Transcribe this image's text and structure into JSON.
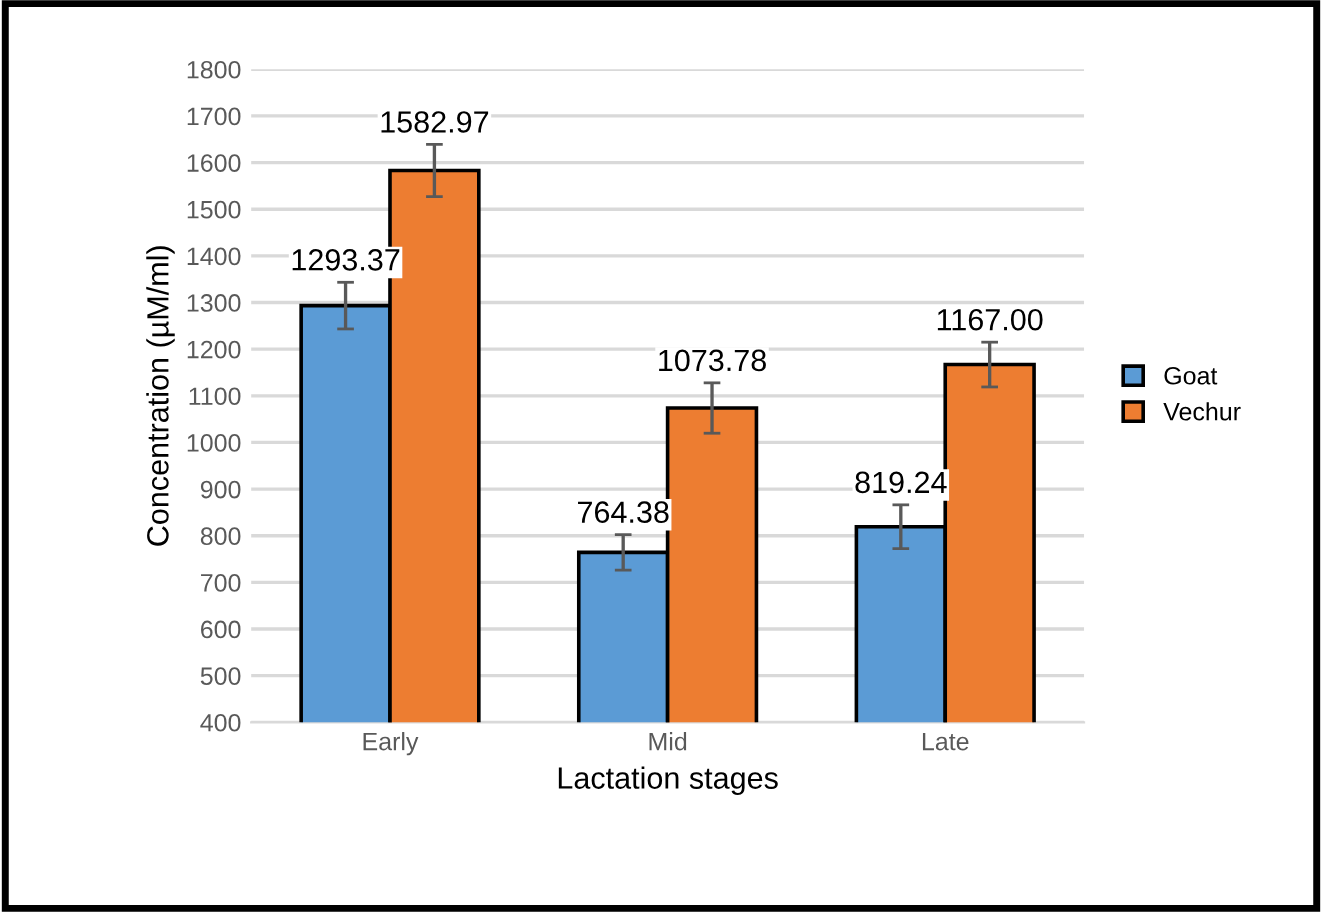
{
  "chart_data": {
    "type": "bar",
    "categories": [
      "Early",
      "Mid",
      "Late"
    ],
    "series": [
      {
        "name": "Goat",
        "color": "#5b9bd5",
        "values": [
          1293.37,
          764.38,
          819.24
        ],
        "errors": [
          50,
          38,
          47
        ],
        "value_labels": [
          "1293.37",
          "764.38",
          "819.24"
        ]
      },
      {
        "name": "Vechur",
        "color": "#ed7d31",
        "values": [
          1582.97,
          1073.78,
          1167.0
        ],
        "errors": [
          56,
          54,
          48
        ],
        "value_labels": [
          "1582.97",
          "1073.78",
          "1167.00"
        ]
      }
    ],
    "xlabel": "Lactation stages",
    "ylabel": "Concentration (µM/ml)",
    "ylim": [
      400,
      1800
    ],
    "yticks": [
      400,
      500,
      600,
      700,
      800,
      900,
      1000,
      1100,
      1200,
      1300,
      1400,
      1500,
      1600,
      1700,
      1800
    ],
    "grid": "y",
    "legend": "right"
  }
}
